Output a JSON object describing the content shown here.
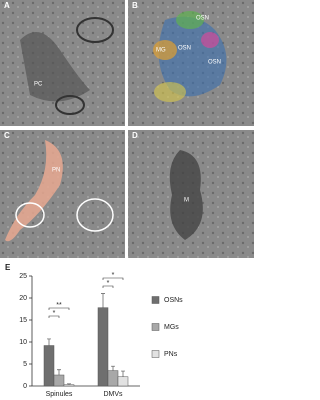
{
  "panels": [
    {
      "label": "A",
      "labels": [
        "PC"
      ]
    },
    {
      "label": "B",
      "labels": [
        "OSN",
        "OSN",
        "OSN",
        "MG"
      ]
    },
    {
      "label": "C",
      "labels": [
        "PN"
      ]
    },
    {
      "label": "D",
      "labels": [
        "M"
      ]
    }
  ],
  "chart_data": {
    "type": "bar",
    "label": "E",
    "categories": [
      "Spinules",
      "DMVs"
    ],
    "series": [
      {
        "name": "OSNs",
        "color": "#6f6f6f",
        "values": [
          9.2,
          17.8
        ],
        "errors": [
          1.5,
          3.2
        ]
      },
      {
        "name": "MGs",
        "color": "#a8a8a8",
        "values": [
          2.5,
          3.5
        ],
        "errors": [
          1.2,
          1.0
        ]
      },
      {
        "name": "PNs",
        "color": "#e2e2e2",
        "values": [
          0.3,
          2.1
        ],
        "errors": [
          0.2,
          1.3
        ]
      }
    ],
    "annotations": [
      {
        "text": "*"
      },
      {
        "text": "**"
      },
      {
        "text": "*"
      },
      {
        "text": "*"
      }
    ],
    "ylim": [
      0,
      25
    ],
    "yticks": [
      0,
      5,
      10,
      15,
      20,
      25
    ],
    "legend": "right"
  }
}
